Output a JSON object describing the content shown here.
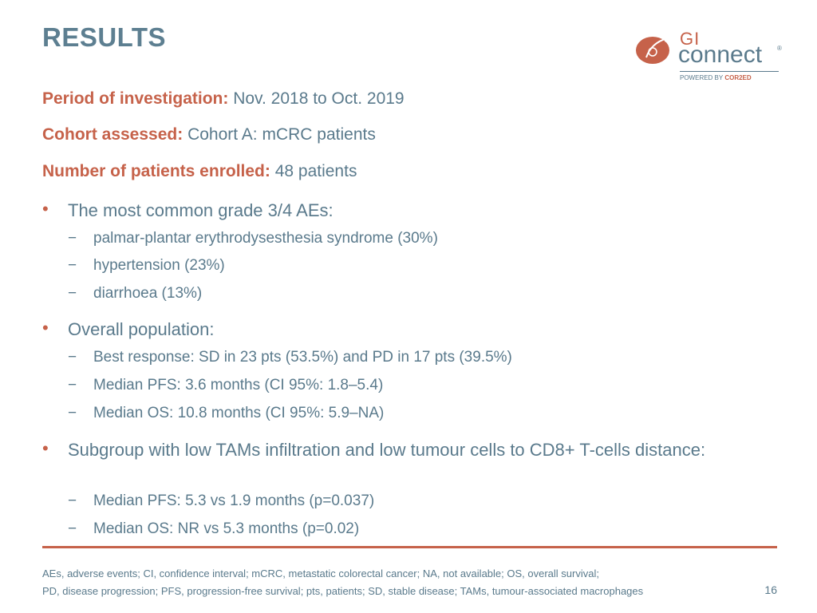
{
  "slide": {
    "title": "RESULTS",
    "page_number": "16"
  },
  "logo": {
    "gi": "GI",
    "connect": "connect",
    "registered": "®",
    "powered_by": "POWERED BY",
    "brand": "COR2ED"
  },
  "meta": {
    "period_label": "Period of investigation:",
    "period_value": "Nov. 2018 to Oct. 2019",
    "cohort_label": "Cohort assessed:",
    "cohort_value": "Cohort A: mCRC patients",
    "enrolled_label": "Number of patients enrolled:",
    "enrolled_value": "48 patients"
  },
  "bullets": [
    {
      "text": "The most common grade 3/4 AEs:",
      "subs": [
        "palmar-plantar erythrodysesthesia syndrome (30%)",
        "hypertension (23%)",
        "diarrhoea (13%)"
      ]
    },
    {
      "text": "Overall population:",
      "subs": [
        "Best response: SD in 23 pts (53.5%) and PD in 17 pts (39.5%)",
        "Median PFS: 3.6 months (CI 95%: 1.8–5.4)",
        "Median OS: 10.8 months (CI 95%: 5.9–NA)"
      ]
    },
    {
      "text": "Subgroup with low TAMs infiltration and low tumour cells to CD8+ T-cells distance:",
      "subs": [
        "Median PFS: 5.3 vs 1.9 months (p=0.037)",
        "Median OS: NR vs 5.3 months (p=0.02)"
      ]
    }
  ],
  "footnote": {
    "line1": "AEs, adverse events; CI, confidence interval; mCRC, metastatic colorectal cancer; NA, not available; OS, overall survival;",
    "line2": "PD, disease progression; PFS, progression-free survival; pts, patients; SD, stable disease; TAMs, tumour-associated macrophages"
  },
  "colors": {
    "accent": "#c6624a",
    "text": "#5a7a8c"
  },
  "markers": {
    "bullet": "•",
    "dash": "−"
  }
}
